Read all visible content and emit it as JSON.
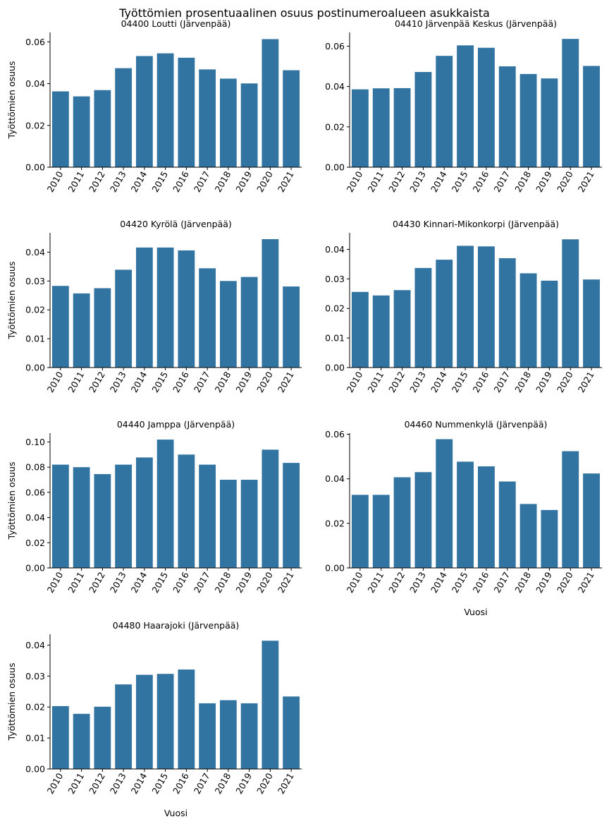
{
  "figure": {
    "title": "Työttömien prosentuaalinen osuus postinumeroalueen asukkaista",
    "bar_color": "#3274a1"
  },
  "chart_data": [
    {
      "type": "bar",
      "title": "04400  Loutti (Järvenpää)",
      "xlabel": "",
      "ylabel": "Työttömien osuus",
      "categories": [
        "2010",
        "2011",
        "2012",
        "2013",
        "2014",
        "2015",
        "2016",
        "2017",
        "2018",
        "2019",
        "2020",
        "2021"
      ],
      "values": [
        0.0363,
        0.0339,
        0.0369,
        0.0474,
        0.0532,
        0.0545,
        0.0524,
        0.0468,
        0.0424,
        0.0401,
        0.0613,
        0.0464
      ],
      "ylim": [
        0,
        0.0645
      ],
      "yticks": [
        "0.00",
        "0.02",
        "0.04",
        "0.06"
      ],
      "ytick_values": [
        0,
        0.02,
        0.04,
        0.06
      ],
      "grid": false
    },
    {
      "type": "bar",
      "title": "04410  Järvenpää Keskus (Järvenpää)",
      "xlabel": "",
      "ylabel": "",
      "categories": [
        "2010",
        "2011",
        "2012",
        "2013",
        "2014",
        "2015",
        "2016",
        "2017",
        "2018",
        "2019",
        "2020",
        "2021"
      ],
      "values": [
        0.0386,
        0.0391,
        0.0392,
        0.0472,
        0.0552,
        0.0604,
        0.0592,
        0.05,
        0.0462,
        0.044,
        0.0636,
        0.0502
      ],
      "ylim": [
        0,
        0.0668
      ],
      "yticks": [
        "0.00",
        "0.02",
        "0.04",
        "0.06"
      ],
      "ytick_values": [
        0,
        0.02,
        0.04,
        0.06
      ],
      "grid": false
    },
    {
      "type": "bar",
      "title": "04420  Kyrölä (Järvenpää)",
      "xlabel": "",
      "ylabel": "Työttömien osuus",
      "categories": [
        "2010",
        "2011",
        "2012",
        "2013",
        "2014",
        "2015",
        "2016",
        "2017",
        "2018",
        "2019",
        "2020",
        "2021"
      ],
      "values": [
        0.0283,
        0.0257,
        0.0275,
        0.0339,
        0.0416,
        0.0416,
        0.0406,
        0.0344,
        0.03,
        0.0314,
        0.0445,
        0.0281
      ],
      "ylim": [
        0,
        0.0467
      ],
      "yticks": [
        "0.00",
        "0.01",
        "0.02",
        "0.03",
        "0.04"
      ],
      "ytick_values": [
        0,
        0.01,
        0.02,
        0.03,
        0.04
      ],
      "grid": false
    },
    {
      "type": "bar",
      "title": "04430  Kinnari-Mikonkorpi (Järvenpää)",
      "xlabel": "",
      "ylabel": "",
      "categories": [
        "2010",
        "2011",
        "2012",
        "2013",
        "2014",
        "2015",
        "2016",
        "2017",
        "2018",
        "2019",
        "2020",
        "2021"
      ],
      "values": [
        0.0256,
        0.0244,
        0.0262,
        0.0337,
        0.0365,
        0.0412,
        0.041,
        0.037,
        0.0319,
        0.0294,
        0.0434,
        0.0298
      ],
      "ylim": [
        0,
        0.0456
      ],
      "yticks": [
        "0.00",
        "0.01",
        "0.02",
        "0.03",
        "0.04"
      ],
      "ytick_values": [
        0,
        0.01,
        0.02,
        0.03,
        0.04
      ],
      "grid": false
    },
    {
      "type": "bar",
      "title": "04440  Jamppa (Järvenpää)",
      "xlabel": "",
      "ylabel": "Työttömien osuus",
      "categories": [
        "2010",
        "2011",
        "2012",
        "2013",
        "2014",
        "2015",
        "2016",
        "2017",
        "2018",
        "2019",
        "2020",
        "2021"
      ],
      "values": [
        0.082,
        0.08,
        0.0745,
        0.082,
        0.0877,
        0.1019,
        0.09,
        0.082,
        0.07,
        0.07,
        0.0939,
        0.0834
      ],
      "ylim": [
        0,
        0.107
      ],
      "yticks": [
        "0.00",
        "0.02",
        "0.04",
        "0.06",
        "0.08",
        "0.10"
      ],
      "ytick_values": [
        0,
        0.02,
        0.04,
        0.06,
        0.08,
        0.1
      ],
      "grid": false
    },
    {
      "type": "bar",
      "title": "04460  Nummenkylä (Järvenpää)",
      "xlabel": "Vuosi",
      "ylabel": "",
      "categories": [
        "2010",
        "2011",
        "2012",
        "2013",
        "2014",
        "2015",
        "2016",
        "2017",
        "2018",
        "2019",
        "2020",
        "2021"
      ],
      "values": [
        0.0328,
        0.0328,
        0.0407,
        0.043,
        0.0578,
        0.0477,
        0.0456,
        0.0388,
        0.0287,
        0.026,
        0.0524,
        0.0424
      ],
      "ylim": [
        0,
        0.0605
      ],
      "yticks": [
        "0.00",
        "0.02",
        "0.04",
        "0.06"
      ],
      "ytick_values": [
        0,
        0.02,
        0.04,
        0.06
      ],
      "grid": false
    },
    {
      "type": "bar",
      "title": "04480  Haarajoki (Järvenpää)",
      "xlabel": "Vuosi",
      "ylabel": "Työttömien osuus",
      "categories": [
        "2010",
        "2011",
        "2012",
        "2013",
        "2014",
        "2015",
        "2016",
        "2017",
        "2018",
        "2019",
        "2020",
        "2021"
      ],
      "values": [
        0.0203,
        0.0178,
        0.0201,
        0.0273,
        0.0304,
        0.0307,
        0.0321,
        0.0212,
        0.0222,
        0.0212,
        0.0414,
        0.0234
      ],
      "ylim": [
        0,
        0.0435
      ],
      "yticks": [
        "0.00",
        "0.01",
        "0.02",
        "0.03",
        "0.04"
      ],
      "ytick_values": [
        0,
        0.01,
        0.02,
        0.03,
        0.04
      ],
      "grid": false
    }
  ]
}
